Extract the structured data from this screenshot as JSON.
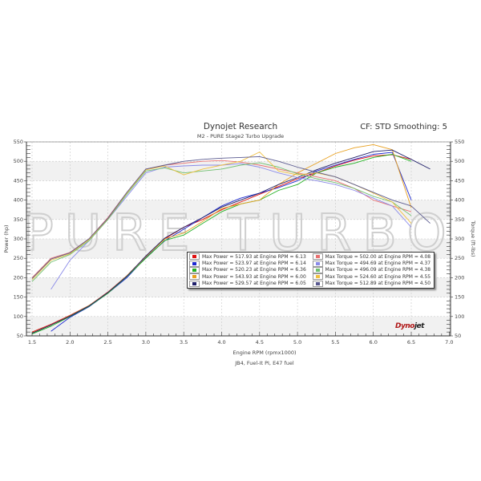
{
  "header": {
    "title": "Dynojet Research",
    "subtitle": "M2 - PURE Stage2 Turbo Upgrade",
    "correction": "CF: STD Smoothing: 5"
  },
  "watermark": "PURE TURBO",
  "logo": {
    "part1": "Dyno",
    "part2": "jet"
  },
  "footer": "JB4, Fuel-It PI, E47 fuel",
  "chart_data": {
    "type": "line",
    "title": "Dynojet Research",
    "subtitle": "M2 - PURE Stage2 Turbo Upgrade",
    "xlabel": "Engine RPM (rpmx1000)",
    "ylabel": "Power (hp)",
    "y2label": "Torque (ft-lbs)",
    "xlim": [
      1.5,
      7.0
    ],
    "ylim": [
      50,
      550
    ],
    "y2lim": [
      50,
      550
    ],
    "xticks": [
      "1.5",
      "2.0",
      "2.5",
      "3.0",
      "3.5",
      "4.0",
      "4.5",
      "5.0",
      "5.5",
      "6.0",
      "6.5",
      "7.0"
    ],
    "yticks": [
      "50",
      "100",
      "150",
      "200",
      "250",
      "300",
      "350",
      "400",
      "450",
      "500",
      "550"
    ],
    "grid": true,
    "legend_position": "inside-lower-right",
    "colors": [
      "#e01010",
      "#1c28d0",
      "#22b022",
      "#e8a020",
      "#20206a",
      "#e87070",
      "#8a8ae8",
      "#70c070",
      "#f0c040",
      "#5a5a90"
    ],
    "x": [
      1.5,
      1.75,
      2.0,
      2.25,
      2.5,
      2.75,
      3.0,
      3.25,
      3.5,
      3.75,
      4.0,
      4.25,
      4.5,
      4.75,
      5.0,
      5.25,
      5.5,
      5.75,
      6.0,
      6.25,
      6.5,
      6.75
    ],
    "series": [
      {
        "name": "Max Power = 517.93 at Engine RPM = 6.13",
        "kind": "power",
        "values": [
          60,
          80,
          103,
          128,
          163,
          205,
          255,
          300,
          330,
          350,
          375,
          395,
          415,
          435,
          455,
          470,
          488,
          503,
          514,
          517,
          505,
          null
        ]
      },
      {
        "name": "Max Power = 523.97 at Engine RPM = 6.14",
        "kind": "power",
        "values": [
          null,
          62,
          98,
          125,
          160,
          200,
          252,
          295,
          325,
          355,
          385,
          405,
          418,
          432,
          450,
          475,
          490,
          505,
          518,
          523,
          400,
          null
        ]
      },
      {
        "name": "Max Power = 520.23 at Engine RPM = 6.36",
        "kind": "power",
        "values": [
          55,
          75,
          100,
          126,
          160,
          203,
          250,
          296,
          310,
          340,
          370,
          390,
          400,
          425,
          440,
          470,
          485,
          495,
          510,
          518,
          500,
          null
        ]
      },
      {
        "name": "Max Power = 543.93 at Engine RPM = 6.00",
        "kind": "power",
        "values": [
          58,
          78,
          102,
          128,
          162,
          205,
          254,
          300,
          315,
          345,
          378,
          390,
          400,
          440,
          470,
          495,
          520,
          535,
          543,
          530,
          380,
          null
        ]
      },
      {
        "name": "Max Power = 529.57 at Engine RPM = 6.05",
        "kind": "power",
        "values": [
          57,
          78,
          101,
          127,
          162,
          204,
          256,
          302,
          330,
          355,
          382,
          400,
          418,
          440,
          458,
          478,
          495,
          510,
          525,
          529,
          505,
          480
        ]
      },
      {
        "name": "Max Torque = 502.00 at Engine RPM = 4.08",
        "kind": "torque",
        "values": [
          200,
          250,
          265,
          300,
          355,
          420,
          480,
          490,
          495,
          500,
          502,
          498,
          490,
          480,
          470,
          460,
          450,
          430,
          400,
          385,
          370,
          null
        ]
      },
      {
        "name": "Max Torque = 494.69 at Engine RPM = 4.37",
        "kind": "torque",
        "values": [
          null,
          170,
          245,
          295,
          350,
          410,
          470,
          485,
          488,
          490,
          490,
          494,
          485,
          470,
          458,
          450,
          440,
          425,
          405,
          385,
          330,
          null
        ]
      },
      {
        "name": "Max Torque = 496.09 at Engine RPM = 4.38",
        "kind": "torque",
        "values": [
          190,
          240,
          260,
          295,
          350,
          415,
          475,
          483,
          470,
          475,
          480,
          490,
          496,
          485,
          468,
          455,
          445,
          430,
          410,
          395,
          360,
          null
        ]
      },
      {
        "name": "Max Torque = 524.60 at Engine RPM = 4.55",
        "kind": "torque",
        "values": [
          195,
          245,
          262,
          298,
          352,
          418,
          478,
          488,
          465,
          480,
          490,
          500,
          524,
          475,
          465,
          470,
          460,
          440,
          418,
          395,
          340,
          null
        ]
      },
      {
        "name": "Max Torque = 512.89 at Engine RPM = 4.50",
        "kind": "torque",
        "values": [
          198,
          248,
          264,
          300,
          353,
          420,
          480,
          490,
          500,
          505,
          508,
          510,
          512,
          500,
          485,
          472,
          460,
          440,
          420,
          400,
          385,
          340
        ]
      }
    ]
  },
  "legend": {
    "power": [
      {
        "label": "Max Power = 517.93 at Engine RPM = 6.13",
        "color": "#e01010"
      },
      {
        "label": "Max Power = 523.97 at Engine RPM = 6.14",
        "color": "#1c28d0"
      },
      {
        "label": "Max Power = 520.23 at Engine RPM = 6.36",
        "color": "#22b022"
      },
      {
        "label": "Max Power = 543.93 at Engine RPM = 6.00",
        "color": "#e8a020"
      },
      {
        "label": "Max Power = 529.57 at Engine RPM = 6.05",
        "color": "#20206a"
      }
    ],
    "torque": [
      {
        "label": "Max Torque = 502.00 at Engine RPM = 4.08",
        "color": "#e87070"
      },
      {
        "label": "Max Torque = 494.69 at Engine RPM = 4.37",
        "color": "#8a8ae8"
      },
      {
        "label": "Max Torque = 496.09 at Engine RPM = 4.38",
        "color": "#70c070"
      },
      {
        "label": "Max Torque = 524.60 at Engine RPM = 4.55",
        "color": "#f0c040"
      },
      {
        "label": "Max Torque = 512.89 at Engine RPM = 4.50",
        "color": "#5a5a90"
      }
    ]
  }
}
